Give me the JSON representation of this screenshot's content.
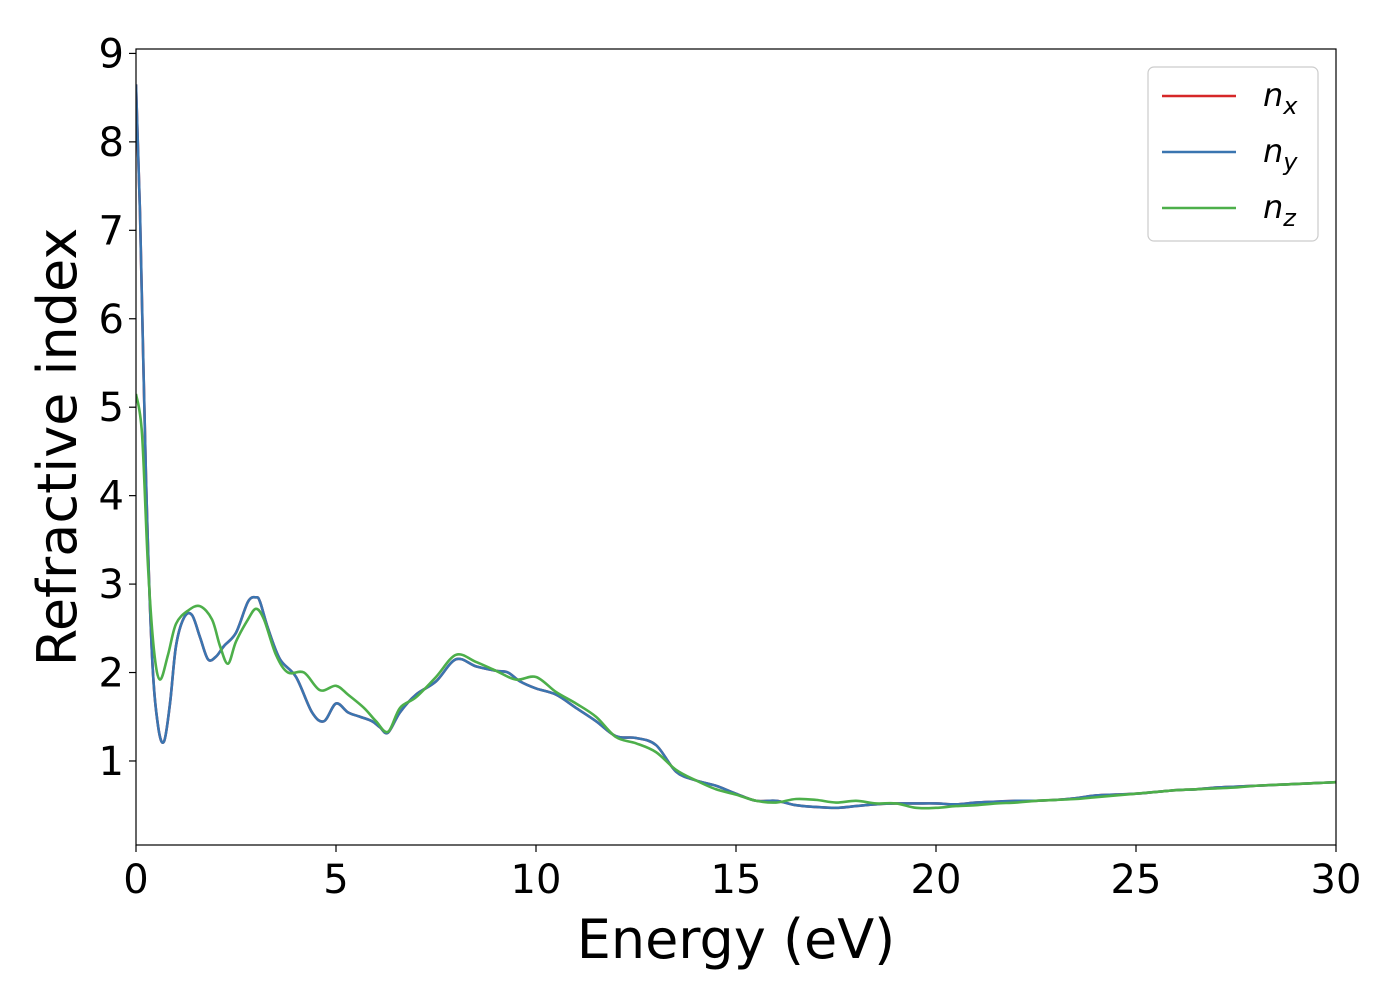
{
  "chart_data": {
    "type": "line",
    "title": "",
    "xlabel": "Energy (eV)",
    "ylabel": "Refractive index",
    "xlim": [
      0,
      30
    ],
    "ylim": [
      0.05,
      9.05
    ],
    "xticks": [
      0,
      5,
      10,
      15,
      20,
      25,
      30
    ],
    "yticks": [
      1,
      2,
      3,
      4,
      5,
      6,
      7,
      8,
      9
    ],
    "grid": false,
    "legend_position": "top-right",
    "series": [
      {
        "name": "n_x",
        "label_base": "n",
        "label_sub": "x",
        "color": "#d62728",
        "x": [
          0,
          0.1,
          0.25,
          0.4,
          0.55,
          0.7,
          0.85,
          1.0,
          1.2,
          1.4,
          1.6,
          1.8,
          2.0,
          2.2,
          2.5,
          2.8,
          3.0,
          3.1,
          3.3,
          3.6,
          4.0,
          4.4,
          4.7,
          5.0,
          5.3,
          5.6,
          5.9,
          6.1,
          6.3,
          6.6,
          7.0,
          7.5,
          8.0,
          8.5,
          9.0,
          9.3,
          9.6,
          10.0,
          10.5,
          11.0,
          11.5,
          12.0,
          12.5,
          13.0,
          13.5,
          14.0,
          14.5,
          15.0,
          15.5,
          16.0,
          16.5,
          17.0,
          17.5,
          18.0,
          18.5,
          19.0,
          19.5,
          20.0,
          20.5,
          21.0,
          21.5,
          22.0,
          22.5,
          23.0,
          23.5,
          24.0,
          24.5,
          25.0,
          25.5,
          26.0,
          26.5,
          27.0,
          27.5,
          28.0,
          28.5,
          29.0,
          29.5,
          30.0
        ],
        "y": [
          8.65,
          7.2,
          4.2,
          2.2,
          1.4,
          1.22,
          1.65,
          2.3,
          2.62,
          2.65,
          2.4,
          2.15,
          2.18,
          2.3,
          2.45,
          2.8,
          2.85,
          2.8,
          2.5,
          2.15,
          1.95,
          1.55,
          1.45,
          1.65,
          1.55,
          1.5,
          1.45,
          1.38,
          1.32,
          1.55,
          1.75,
          1.9,
          2.15,
          2.07,
          2.02,
          2.0,
          1.9,
          1.82,
          1.75,
          1.6,
          1.45,
          1.28,
          1.26,
          1.18,
          0.88,
          0.78,
          0.72,
          0.63,
          0.55,
          0.55,
          0.5,
          0.48,
          0.47,
          0.49,
          0.51,
          0.52,
          0.52,
          0.52,
          0.51,
          0.53,
          0.54,
          0.55,
          0.55,
          0.56,
          0.58,
          0.61,
          0.62,
          0.63,
          0.65,
          0.67,
          0.68,
          0.7,
          0.71,
          0.72,
          0.73,
          0.74,
          0.75,
          0.76
        ]
      },
      {
        "name": "n_y",
        "label_base": "n",
        "label_sub": "y",
        "color": "#3a75b0",
        "x": [
          0,
          0.1,
          0.25,
          0.4,
          0.55,
          0.7,
          0.85,
          1.0,
          1.2,
          1.4,
          1.6,
          1.8,
          2.0,
          2.2,
          2.5,
          2.8,
          3.0,
          3.1,
          3.3,
          3.6,
          4.0,
          4.4,
          4.7,
          5.0,
          5.3,
          5.6,
          5.9,
          6.1,
          6.3,
          6.6,
          7.0,
          7.5,
          8.0,
          8.5,
          9.0,
          9.3,
          9.6,
          10.0,
          10.5,
          11.0,
          11.5,
          12.0,
          12.5,
          13.0,
          13.5,
          14.0,
          14.5,
          15.0,
          15.5,
          16.0,
          16.5,
          17.0,
          17.5,
          18.0,
          18.5,
          19.0,
          19.5,
          20.0,
          20.5,
          21.0,
          21.5,
          22.0,
          22.5,
          23.0,
          23.5,
          24.0,
          24.5,
          25.0,
          25.5,
          26.0,
          26.5,
          27.0,
          27.5,
          28.0,
          28.5,
          29.0,
          29.5,
          30.0
        ],
        "y": [
          8.65,
          7.2,
          4.2,
          2.2,
          1.4,
          1.22,
          1.65,
          2.3,
          2.62,
          2.65,
          2.4,
          2.15,
          2.18,
          2.3,
          2.45,
          2.8,
          2.85,
          2.8,
          2.5,
          2.15,
          1.95,
          1.55,
          1.45,
          1.65,
          1.55,
          1.5,
          1.45,
          1.38,
          1.32,
          1.55,
          1.75,
          1.9,
          2.15,
          2.07,
          2.02,
          2.0,
          1.9,
          1.82,
          1.75,
          1.6,
          1.45,
          1.28,
          1.26,
          1.18,
          0.88,
          0.78,
          0.72,
          0.63,
          0.55,
          0.55,
          0.5,
          0.48,
          0.47,
          0.49,
          0.51,
          0.52,
          0.52,
          0.52,
          0.51,
          0.53,
          0.54,
          0.55,
          0.55,
          0.56,
          0.58,
          0.61,
          0.62,
          0.63,
          0.65,
          0.67,
          0.68,
          0.7,
          0.71,
          0.72,
          0.73,
          0.74,
          0.75,
          0.76
        ]
      },
      {
        "name": "n_z",
        "label_base": "n",
        "label_sub": "z",
        "color": "#4daf4a",
        "x": [
          0,
          0.15,
          0.3,
          0.45,
          0.6,
          0.8,
          1.0,
          1.3,
          1.6,
          1.9,
          2.1,
          2.3,
          2.5,
          2.8,
          3.0,
          3.2,
          3.5,
          3.8,
          4.2,
          4.6,
          5.0,
          5.3,
          5.7,
          6.0,
          6.3,
          6.6,
          7.0,
          7.5,
          8.0,
          8.5,
          9.0,
          9.5,
          10.0,
          10.5,
          11.0,
          11.5,
          12.0,
          12.5,
          13.0,
          13.5,
          14.0,
          14.5,
          15.0,
          15.5,
          16.0,
          16.5,
          17.0,
          17.5,
          18.0,
          18.5,
          19.0,
          19.5,
          20.0,
          20.5,
          21.0,
          21.5,
          22.0,
          22.5,
          23.0,
          23.5,
          24.0,
          24.5,
          25.0,
          25.5,
          26.0,
          26.5,
          27.0,
          27.5,
          28.0,
          28.5,
          29.0,
          29.5,
          30.0
        ],
        "y": [
          5.15,
          4.7,
          3.2,
          2.25,
          1.92,
          2.2,
          2.55,
          2.7,
          2.75,
          2.6,
          2.3,
          2.1,
          2.35,
          2.6,
          2.72,
          2.6,
          2.2,
          2.0,
          2.0,
          1.8,
          1.85,
          1.75,
          1.6,
          1.45,
          1.33,
          1.6,
          1.72,
          1.95,
          2.2,
          2.12,
          2.02,
          1.92,
          1.95,
          1.78,
          1.65,
          1.5,
          1.27,
          1.2,
          1.1,
          0.9,
          0.78,
          0.68,
          0.62,
          0.55,
          0.53,
          0.57,
          0.56,
          0.53,
          0.55,
          0.52,
          0.52,
          0.47,
          0.47,
          0.49,
          0.5,
          0.52,
          0.53,
          0.55,
          0.56,
          0.57,
          0.59,
          0.61,
          0.63,
          0.65,
          0.67,
          0.68,
          0.69,
          0.7,
          0.72,
          0.73,
          0.74,
          0.75,
          0.76
        ]
      }
    ]
  }
}
